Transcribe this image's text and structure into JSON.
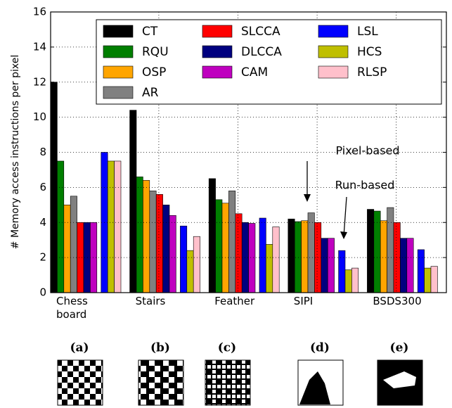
{
  "chart_data": {
    "type": "bar",
    "ylabel": "# Memory access  instructions  per pixel",
    "categories": [
      "Chess board",
      "Stairs",
      "Feather",
      "SIPI",
      "BSDS300"
    ],
    "series": [
      {
        "name": "CT",
        "color": "#000000",
        "values": [
          12,
          10.4,
          6.5,
          4.2,
          4.75
        ]
      },
      {
        "name": "RQU",
        "color": "#007f00",
        "values": [
          7.5,
          6.6,
          5.3,
          4.05,
          4.65
        ]
      },
      {
        "name": "OSP",
        "color": "#ffa500",
        "values": [
          5,
          6.4,
          5.1,
          4.1,
          4.1
        ]
      },
      {
        "name": "AR",
        "color": "#808080",
        "values": [
          5.5,
          5.8,
          5.8,
          4.55,
          4.85
        ]
      },
      {
        "name": "SLCCA",
        "color": "#ff0000",
        "values": [
          4,
          5.6,
          4.5,
          4.0,
          4.0
        ]
      },
      {
        "name": "DLCCA",
        "color": "#00007f",
        "values": [
          4,
          5.0,
          4.0,
          3.1,
          3.1
        ]
      },
      {
        "name": "CAM",
        "color": "#bf00bf",
        "values": [
          4,
          4.4,
          3.95,
          3.1,
          3.1
        ]
      },
      {
        "name": "LSL",
        "color": "#0000ff",
        "values": [
          8,
          3.8,
          4.25,
          2.4,
          2.45
        ]
      },
      {
        "name": "HCS",
        "color": "#bfbf00",
        "values": [
          7.5,
          2.4,
          2.75,
          1.3,
          1.4
        ]
      },
      {
        "name": "RLSP",
        "color": "#ffc0cb",
        "values": [
          7.5,
          3.2,
          3.75,
          1.4,
          1.5
        ]
      }
    ],
    "ylim": [
      0,
      16
    ],
    "yticks": [
      0,
      2,
      4,
      6,
      8,
      10,
      12,
      14,
      16
    ],
    "grid": true,
    "annotations": [
      "Pixel-based",
      "Run-based"
    ]
  },
  "panels": [
    "(a)",
    "(b)",
    "(c)",
    "(d)",
    "(e)"
  ]
}
